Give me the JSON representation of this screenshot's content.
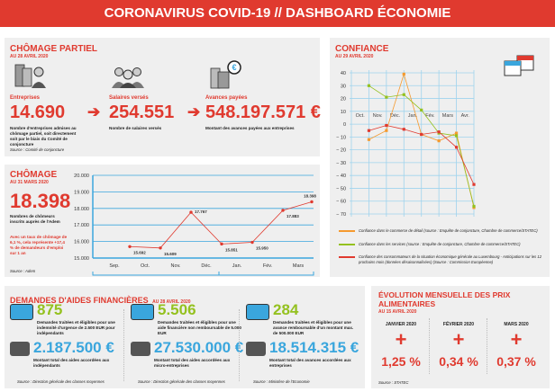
{
  "title": "CORONAVIRUS COVID-19 // DASHBOARD ÉCONOMIE",
  "chomage_partiel": {
    "title": "CHÔMAGE PARTIEL",
    "date": "AU 28 AVRIL 2020",
    "items": [
      {
        "label": "Entreprises",
        "value": "14.690",
        "desc": "Nombre d'entreprises admises au chômage partiel, soit directement soit par le biais du Comité de conjoncture",
        "icon": "building-people-icon"
      },
      {
        "label": "Salaires versés",
        "value": "254.551",
        "desc": "Nombre de salaires versés",
        "icon": "people-icon"
      },
      {
        "label": "Avances payées",
        "value": "548.197.571 €",
        "desc": "Montant des avances payées aux entreprises",
        "icon": "building-euro-icon"
      }
    ],
    "source": "Source : Comité de conjoncture"
  },
  "chomage": {
    "title": "CHÔMAGE",
    "date": "AU 31 MARS 2020",
    "value": "18.398",
    "desc": "Nombres de chômeurs inscrits auprès de l'Adem",
    "note": "Avec un taux de chômage de 6,1 %, cela représente +17,4 % de demandeurs d'emploi sur 1 an",
    "source": "Source : Adem"
  },
  "confiance": {
    "title": "CONFIANCE",
    "date": "AU 29 AVRIL 2020",
    "icon": "calendar-icon",
    "legend": [
      "Confiance dans le commerce de détail (source : Enquête de conjoncture, Chambre de commerce/STATEC)",
      "Confiance dans les services (source : Enquête de conjoncture, Chambre de commerce/STATEC)",
      "Confiance des consommateurs de la situation économique générale au Luxembourg - Anticipations sur les 12 prochains mois (données désaisonnalisées) (Source : Commission Européenne)"
    ]
  },
  "chart_data": [
    {
      "type": "line",
      "categories": [
        "Sep.",
        "Oct.",
        "Nov.",
        "Déc.",
        "Jan.",
        "Fév.",
        "Mars"
      ],
      "values": [
        15692,
        15609,
        17767,
        15851,
        15950,
        17883,
        18398
      ],
      "data_labels": [
        "15.692",
        "15.609",
        "17.767",
        "15.851",
        "15.950",
        "17.883",
        "18.398"
      ],
      "ylim": [
        15000,
        20000
      ],
      "yticks": [
        "15.000",
        "16.000",
        "17.000",
        "18.000",
        "19.000",
        "20.000"
      ],
      "grid": true,
      "color": "#e03a2f"
    },
    {
      "type": "line",
      "categories": [
        "Oct.",
        "Nov.",
        "Déc.",
        "Jan.",
        "Fév.",
        "Mars",
        "Avr."
      ],
      "ylim": [
        -70,
        40
      ],
      "yticks": [
        40,
        30,
        20,
        10,
        0,
        -10,
        -20,
        -30,
        -40,
        -50,
        -60,
        -70
      ],
      "grid": true,
      "legend": "bottom",
      "series": [
        {
          "values": [
            -12,
            -5,
            39,
            -8,
            -13,
            -7,
            -65
          ],
          "color": "#f59a2f"
        },
        {
          "values": [
            30,
            21,
            23,
            11,
            -7,
            -9,
            -64
          ],
          "color": "#94c11f"
        },
        {
          "values": [
            -5,
            -1,
            -4,
            -8,
            -6,
            -18,
            -47
          ],
          "color": "#e03a2f"
        }
      ]
    }
  ],
  "aides": {
    "title": "DEMANDES D'AIDES FINANCIÈRES",
    "date": "AU 28 AVRIL 2020",
    "cols": [
      {
        "count": "875",
        "count_color": "#94c11f",
        "count_desc": "Demandes traitées et éligibles pour une indemnité d'urgence de 2.500 EUR pour indépendants",
        "amount": "2.187.500 €",
        "amount_desc": "Montant total des aides accordées aux indépendants",
        "source": "Source : Direction générale des classes moyennes"
      },
      {
        "count": "5.506",
        "count_color": "#94c11f",
        "count_desc": "Demandes traitées et éligibles pour une aide financière non remboursable de 5.000 EUR",
        "amount": "27.530.000 €",
        "amount_desc": "Montant total des aides accordées aux micro-entreprises",
        "source": "Source : Direction générale des classes moyennes"
      },
      {
        "count": "284",
        "count_color": "#94c11f",
        "count_desc": "Demandes traitées et éligibles pour une avance remboursable d'un montant max. de 500.000 EUR",
        "amount": "18.514.315 €",
        "amount_desc": "Montant total des avances accordées aux entreprises",
        "source": "Source : Ministère de l'Economie"
      }
    ],
    "amount_color": "#3aa6dd"
  },
  "prix": {
    "title": "ÉVOLUTION MENSUELLE DES PRIX ALIMENTAIRES",
    "date": "AU 15 AVRIL 2020",
    "items": [
      {
        "month": "JANVIER 2020",
        "sign": "+",
        "value": "1,25 %"
      },
      {
        "month": "FÉVRIER 2020",
        "sign": "+",
        "value": "0,34 %"
      },
      {
        "month": "MARS 2020",
        "sign": "+",
        "value": "0,37 %"
      }
    ],
    "source": "Source : STATEC"
  }
}
